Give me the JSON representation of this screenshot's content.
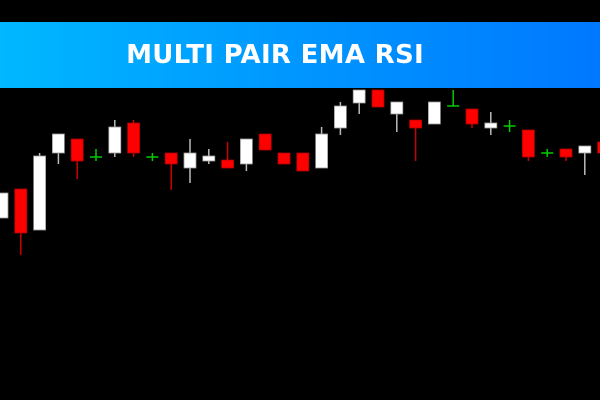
{
  "banner": {
    "title": "MULTI PAIR EMA RSI"
  },
  "colors": {
    "background": "#000000",
    "bull": "#ffffff",
    "bear": "#ff0000",
    "doji": "#00cc00",
    "banner_start": "#00b8ff",
    "banner_end": "#0078ff"
  },
  "chart_data": {
    "type": "candlestick",
    "title": "",
    "grid": false,
    "candles": [
      {
        "o": 182,
        "h": 207,
        "l": 182,
        "c": 207
      },
      {
        "o": 211,
        "h": 211,
        "l": 145,
        "c": 167
      },
      {
        "o": 170,
        "h": 247,
        "l": 170,
        "c": 244
      },
      {
        "o": 247,
        "h": 266,
        "l": 236,
        "c": 266
      },
      {
        "o": 261,
        "h": 261,
        "l": 221,
        "c": 239
      },
      {
        "o": 243,
        "h": 251,
        "l": 239,
        "c": 243
      },
      {
        "o": 247,
        "h": 280,
        "l": 243,
        "c": 273
      },
      {
        "o": 277,
        "h": 280,
        "l": 243,
        "c": 247
      },
      {
        "o": 243,
        "h": 247,
        "l": 239,
        "c": 243
      },
      {
        "o": 247,
        "h": 247,
        "l": 210,
        "c": 236
      },
      {
        "o": 232,
        "h": 261,
        "l": 217,
        "c": 247
      },
      {
        "o": 239,
        "h": 251,
        "l": 236,
        "c": 244
      },
      {
        "o": 240,
        "h": 258,
        "l": 232,
        "c": 232
      },
      {
        "o": 236,
        "h": 261,
        "l": 229,
        "c": 261
      },
      {
        "o": 266,
        "h": 266,
        "l": 250,
        "c": 250
      },
      {
        "o": 247,
        "h": 247,
        "l": 236,
        "c": 236
      },
      {
        "o": 247,
        "h": 247,
        "l": 229,
        "c": 229
      },
      {
        "o": 232,
        "h": 273,
        "l": 232,
        "c": 266
      },
      {
        "o": 272,
        "h": 298,
        "l": 265,
        "c": 294
      },
      {
        "o": 297,
        "h": 310,
        "l": 286,
        "c": 310
      },
      {
        "o": 310,
        "h": 310,
        "l": 293,
        "c": 293
      },
      {
        "o": 286,
        "h": 298,
        "l": 268,
        "c": 298
      },
      {
        "o": 280,
        "h": 280,
        "l": 239,
        "c": 272
      },
      {
        "o": 276,
        "h": 298,
        "l": 276,
        "c": 298
      },
      {
        "o": 294,
        "h": 310,
        "l": 294,
        "c": 294
      },
      {
        "o": 291,
        "h": 291,
        "l": 272,
        "c": 276
      },
      {
        "o": 272,
        "h": 288,
        "l": 265,
        "c": 277
      },
      {
        "o": 274,
        "h": 280,
        "l": 268,
        "c": 274
      },
      {
        "o": 270,
        "h": 270,
        "l": 239,
        "c": 243
      },
      {
        "o": 247,
        "h": 251,
        "l": 243,
        "c": 247
      },
      {
        "o": 251,
        "h": 251,
        "l": 239,
        "c": 243
      },
      {
        "o": 247,
        "h": 254,
        "l": 225,
        "c": 254
      },
      {
        "o": 258,
        "h": 258,
        "l": 247,
        "c": 247
      }
    ]
  }
}
